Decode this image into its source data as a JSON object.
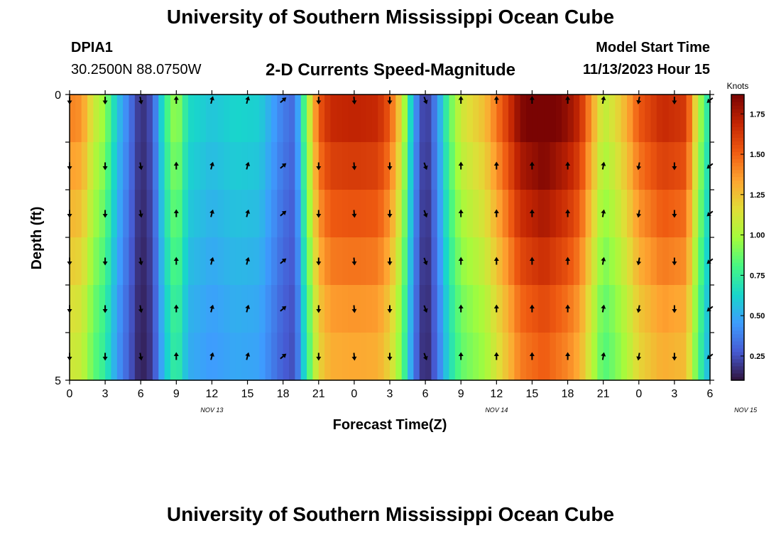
{
  "header": {
    "title": "University of Southern Mississippi Ocean Cube",
    "station": "DPIA1",
    "coords": "30.2500N  88.0750W",
    "subtitle": "2-D Currents Speed-Magnitude",
    "model_label": "Model Start Time",
    "model_time": "11/13/2023 Hour 15"
  },
  "footer": {
    "title": "University of Southern Mississippi Ocean Cube"
  },
  "colors": {
    "low": "#30123b",
    "mid": "#a4fc3c",
    "high": "#7a0403"
  },
  "chart_data": {
    "type": "heatmap",
    "xlabel": "Forecast Time(Z)",
    "ylabel": "Depth (ft)",
    "y_tick_labels": [
      "0",
      "5"
    ],
    "ylim": [
      0,
      5
    ],
    "x_tick_labels": [
      "0",
      "3",
      "6",
      "9",
      "12",
      "15",
      "18",
      "21",
      "0",
      "3",
      "6",
      "9",
      "12",
      "15",
      "18",
      "21",
      "0",
      "3",
      "6"
    ],
    "date_labels": [
      {
        "text": "NOV 13",
        "hour": 12
      },
      {
        "text": "NOV 14",
        "hour": 36
      },
      {
        "text": "NOV 15",
        "hour": 57
      }
    ],
    "x_hours": [
      0,
      54
    ],
    "colorbar": {
      "label": "Knots",
      "range": [
        0.1,
        1.87
      ],
      "ticks": [
        "0.25",
        "0.50",
        "0.75",
        "1.00",
        "1.25",
        "1.50",
        "1.75"
      ]
    },
    "time_profile": [
      [
        0,
        1.35
      ],
      [
        1,
        1.32
      ],
      [
        2,
        1.05
      ],
      [
        3,
        0.9
      ],
      [
        4,
        0.55
      ],
      [
        5,
        0.35
      ],
      [
        6,
        0.15
      ],
      [
        7,
        0.25
      ],
      [
        8,
        0.7
      ],
      [
        9,
        0.95
      ],
      [
        10,
        0.62
      ],
      [
        12,
        0.55
      ],
      [
        14,
        0.6
      ],
      [
        16,
        0.58
      ],
      [
        18,
        0.35
      ],
      [
        19,
        0.3
      ],
      [
        20,
        0.9
      ],
      [
        21,
        1.45
      ],
      [
        22,
        1.6
      ],
      [
        24,
        1.62
      ],
      [
        26,
        1.6
      ],
      [
        27,
        1.45
      ],
      [
        28,
        1.1
      ],
      [
        29,
        0.45
      ],
      [
        30,
        0.15
      ],
      [
        31,
        0.4
      ],
      [
        32,
        0.8
      ],
      [
        33,
        1.05
      ],
      [
        35,
        1.2
      ],
      [
        37,
        1.55
      ],
      [
        38,
        1.75
      ],
      [
        40,
        1.85
      ],
      [
        42,
        1.72
      ],
      [
        43,
        1.6
      ],
      [
        44,
        1.3
      ],
      [
        45,
        1.0
      ],
      [
        46,
        1.1
      ],
      [
        47,
        1.25
      ],
      [
        48,
        1.45
      ],
      [
        50,
        1.6
      ],
      [
        52,
        1.55
      ],
      [
        53,
        1.0
      ],
      [
        54,
        0.6
      ]
    ],
    "depth_factor": [
      1.05,
      1.0,
      0.95,
      0.9,
      0.85,
      0.82
    ],
    "arrow_hours": [
      0,
      3,
      6,
      9,
      12,
      15,
      18,
      21,
      24,
      27,
      30,
      33,
      36,
      39,
      42,
      45,
      48,
      51,
      54
    ],
    "arrow_dirs_deg": [
      180,
      180,
      170,
      0,
      15,
      15,
      50,
      180,
      175,
      180,
      160,
      0,
      0,
      0,
      0,
      10,
      190,
      180,
      230
    ]
  }
}
